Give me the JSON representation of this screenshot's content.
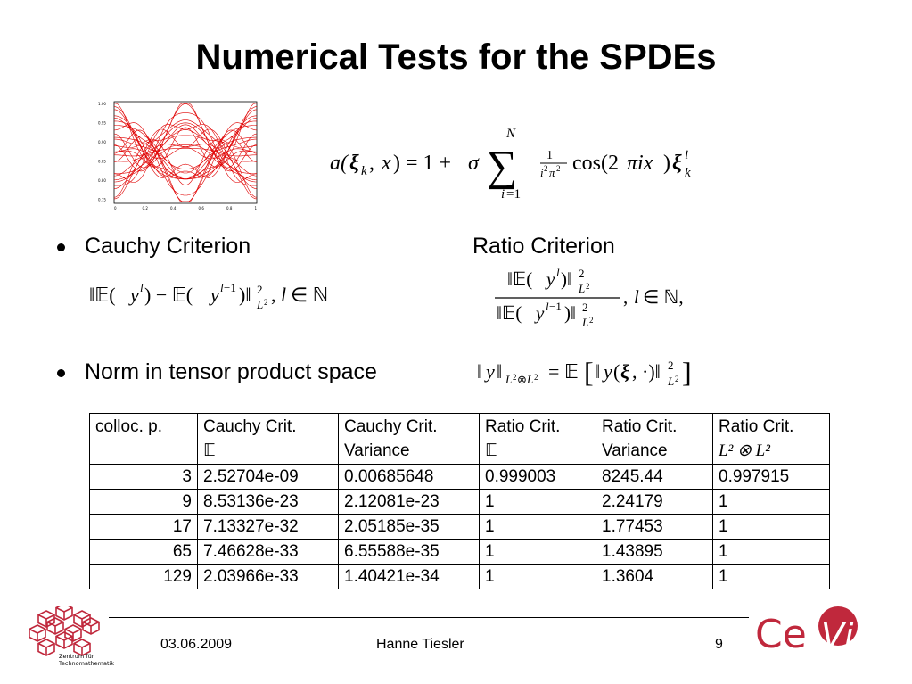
{
  "slide": {
    "title": "Numerical Tests for the SPDEs"
  },
  "plot": {
    "y_ticks": [
      "1.00",
      "0.95",
      "0.90",
      "0.85",
      "0.80",
      "0.75"
    ],
    "x_ticks": [
      "0",
      "0.2",
      "0.4",
      "0.6",
      "0.8",
      "1"
    ],
    "curve_color": "#e00000"
  },
  "bullets": [
    {
      "label": "Cauchy Criterion"
    },
    {
      "label": "Norm in tensor product space"
    }
  ],
  "ratio_label": "Ratio Criterion",
  "table": {
    "headers": [
      {
        "line1": "colloc. p.",
        "line2": ""
      },
      {
        "line1": "Cauchy Crit.",
        "line2": "𝔼"
      },
      {
        "line1": "Cauchy Crit.",
        "line2": "Variance"
      },
      {
        "line1": "Ratio Crit.",
        "line2": "𝔼"
      },
      {
        "line1": "Ratio Crit.",
        "line2": "Variance"
      },
      {
        "line1": "Ratio Crit.",
        "line2": "L² ⊗ L²"
      }
    ],
    "rows": [
      [
        "3",
        "2.52704e-09",
        "0.00685648",
        "0.999003",
        "8245.44",
        "0.997915"
      ],
      [
        "9",
        "8.53136e-23",
        "2.12081e-23",
        "1",
        "2.24179",
        "1"
      ],
      [
        "17",
        "7.13327e-32",
        "2.05185e-35",
        "1",
        "1.77453",
        "1"
      ],
      [
        "65",
        "7.46628e-33",
        "6.55588e-35",
        "1",
        "1.43895",
        "1"
      ],
      [
        "129",
        "2.03966e-33",
        "1.40421e-34",
        "1",
        "1.3604",
        "1"
      ]
    ]
  },
  "footer": {
    "date": "03.06.2009",
    "author": "Hanne Tiesler",
    "page": "9"
  },
  "logos": {
    "left_line1": "Zentrum für",
    "left_line2": "Technomathematik",
    "right_ce": "Ce",
    "right_vis": "Vis",
    "ztf_color": "#c0283c",
    "cevis_color": "#c0283c"
  }
}
